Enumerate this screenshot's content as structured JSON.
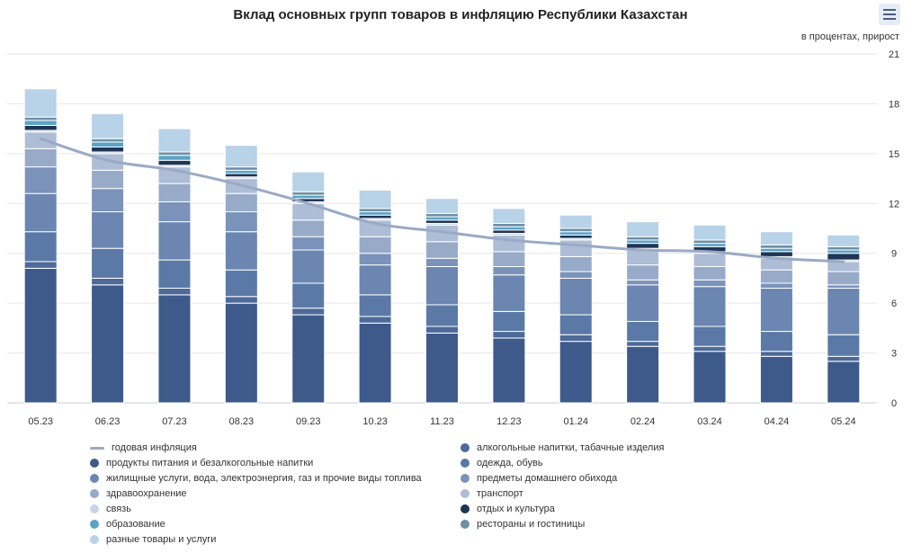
{
  "title": "Вклад основных групп товаров в инфляцию Республики Казахстан",
  "unit_label": "в процентах, прирост",
  "menu_icon": "hamburger-menu-icon",
  "chart_data": {
    "type": "bar",
    "stacked": true,
    "categories": [
      "05.23",
      "06.23",
      "07.23",
      "08.23",
      "09.23",
      "10.23",
      "11.23",
      "12.23",
      "01.24",
      "02.24",
      "03.24",
      "04.24",
      "05.24"
    ],
    "yaxis": {
      "position": "right",
      "ticks": [
        0,
        3,
        6,
        9,
        12,
        15,
        18,
        21
      ],
      "ylim": [
        0,
        21
      ]
    },
    "grid": true,
    "legend_position": "bottom",
    "series": [
      {
        "name": "продукты питания и безалкогольные напитки",
        "color": "#3d5a8a",
        "values": [
          8.1,
          7.1,
          6.5,
          6.0,
          5.3,
          4.8,
          4.2,
          3.9,
          3.7,
          3.4,
          3.1,
          2.8,
          2.5
        ]
      },
      {
        "name": "алкогольные напитки, табачные изделия",
        "color": "#4d6a98",
        "values": [
          0.4,
          0.4,
          0.4,
          0.4,
          0.4,
          0.4,
          0.4,
          0.4,
          0.4,
          0.3,
          0.3,
          0.3,
          0.3
        ]
      },
      {
        "name": "одежда, обувь",
        "color": "#5b79a6",
        "values": [
          1.8,
          1.8,
          1.7,
          1.6,
          1.5,
          1.3,
          1.3,
          1.2,
          1.2,
          1.2,
          1.2,
          1.2,
          1.3
        ]
      },
      {
        "name": "жилищные услуги, вода, электроэнергия, газ и прочие виды топлива",
        "color": "#6b86b0",
        "values": [
          2.3,
          2.2,
          2.3,
          2.3,
          2.0,
          1.8,
          2.3,
          2.2,
          2.2,
          2.2,
          2.4,
          2.6,
          2.8
        ]
      },
      {
        "name": "предметы домашнего обихода",
        "color": "#7b93ba",
        "values": [
          1.6,
          1.4,
          1.2,
          1.2,
          0.8,
          0.7,
          0.5,
          0.5,
          0.4,
          0.3,
          0.4,
          0.3,
          0.2
        ]
      },
      {
        "name": "здравоохранение",
        "color": "#97aac8",
        "values": [
          1.1,
          1.1,
          1.1,
          1.1,
          1.0,
          1.0,
          1.0,
          0.9,
          0.9,
          0.9,
          0.8,
          0.8,
          0.8
        ]
      },
      {
        "name": "транспорт",
        "color": "#aebdd6",
        "values": [
          1.0,
          1.0,
          1.0,
          0.9,
          1.0,
          1.0,
          1.0,
          1.0,
          1.0,
          0.9,
          0.8,
          0.7,
          0.6
        ]
      },
      {
        "name": "связь",
        "color": "#c8d3e4",
        "values": [
          0.1,
          0.1,
          0.1,
          0.1,
          0.1,
          0.1,
          0.1,
          0.1,
          0.1,
          0.1,
          0.1,
          0.1,
          0.1
        ]
      },
      {
        "name": "отдых и культура",
        "color": "#1e3556",
        "values": [
          0.3,
          0.3,
          0.3,
          0.2,
          0.2,
          0.2,
          0.2,
          0.2,
          0.2,
          0.3,
          0.3,
          0.3,
          0.4
        ]
      },
      {
        "name": "образование",
        "color": "#5aa2c8",
        "values": [
          0.3,
          0.3,
          0.3,
          0.2,
          0.2,
          0.2,
          0.2,
          0.2,
          0.2,
          0.2,
          0.2,
          0.2,
          0.2
        ]
      },
      {
        "name": "рестораны и гостиницы",
        "color": "#6d8fa3",
        "values": [
          0.2,
          0.2,
          0.2,
          0.2,
          0.2,
          0.2,
          0.2,
          0.2,
          0.2,
          0.2,
          0.2,
          0.2,
          0.2
        ]
      },
      {
        "name": "разные товары и услуги",
        "color": "#b8d2e8",
        "values": [
          1.7,
          1.5,
          1.4,
          1.3,
          1.2,
          1.1,
          0.9,
          0.9,
          0.8,
          0.9,
          0.9,
          0.8,
          0.7
        ]
      }
    ],
    "line": {
      "name": "годовая инфляция",
      "color": "#9aaac4",
      "values": [
        15.9,
        14.6,
        14.0,
        13.1,
        12.0,
        10.8,
        10.3,
        9.8,
        9.5,
        9.2,
        9.1,
        8.7,
        8.5
      ]
    }
  },
  "legend": {
    "left": [
      {
        "label": "годовая инфляция",
        "color": "#9aaac4",
        "marker": "line"
      },
      {
        "label": "продукты питания и безалкогольные напитки",
        "color": "#3d5a8a",
        "marker": "dot"
      },
      {
        "label": "жилищные услуги, вода, электроэнергия, газ и прочие виды топлива",
        "color": "#6b86b0",
        "marker": "dot"
      },
      {
        "label": "здравоохранение",
        "color": "#97aac8",
        "marker": "dot"
      },
      {
        "label": "связь",
        "color": "#c8d3e4",
        "marker": "dot"
      },
      {
        "label": "образование",
        "color": "#5aa2c8",
        "marker": "dot"
      },
      {
        "label": "разные товары и услуги",
        "color": "#b8d2e8",
        "marker": "dot"
      }
    ],
    "right": [
      {
        "label": "алкогольные напитки, табачные изделия",
        "color": "#4d6a98",
        "marker": "dot"
      },
      {
        "label": "одежда, обувь",
        "color": "#5b79a6",
        "marker": "dot"
      },
      {
        "label": "предметы домашнего обихода",
        "color": "#7b93ba",
        "marker": "dot"
      },
      {
        "label": "транспорт",
        "color": "#aebdd6",
        "marker": "dot"
      },
      {
        "label": "отдых и культура",
        "color": "#1e3556",
        "marker": "dot"
      },
      {
        "label": "рестораны и гостиницы",
        "color": "#6d8fa3",
        "marker": "dot"
      }
    ]
  }
}
